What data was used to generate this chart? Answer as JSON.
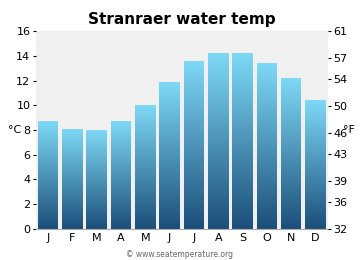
{
  "title": "Stranraer water temp",
  "months": [
    "J",
    "F",
    "M",
    "A",
    "M",
    "J",
    "J",
    "A",
    "S",
    "O",
    "N",
    "D"
  ],
  "values_c": [
    8.7,
    8.1,
    8.0,
    8.7,
    10.0,
    11.9,
    13.6,
    14.2,
    14.2,
    13.4,
    12.2,
    10.4
  ],
  "ylim_c": [
    0,
    16
  ],
  "yticks_c": [
    0,
    2,
    4,
    6,
    8,
    10,
    12,
    14,
    16
  ],
  "ylim_f": [
    32,
    61
  ],
  "yticks_f": [
    32,
    36,
    39,
    43,
    46,
    50,
    54,
    57,
    61
  ],
  "ylabel_left": "°C",
  "ylabel_right": "°F",
  "watermark": "© www.seatemperature.org",
  "bar_color_top": "#7dd8f5",
  "bar_color_bottom": "#1b4e7a",
  "bg_color": "#f0f0f0",
  "fig_color": "#ffffff",
  "title_fontsize": 11,
  "axis_label_fontsize": 8,
  "tick_fontsize": 8,
  "bar_width": 0.85,
  "num_grad": 200
}
